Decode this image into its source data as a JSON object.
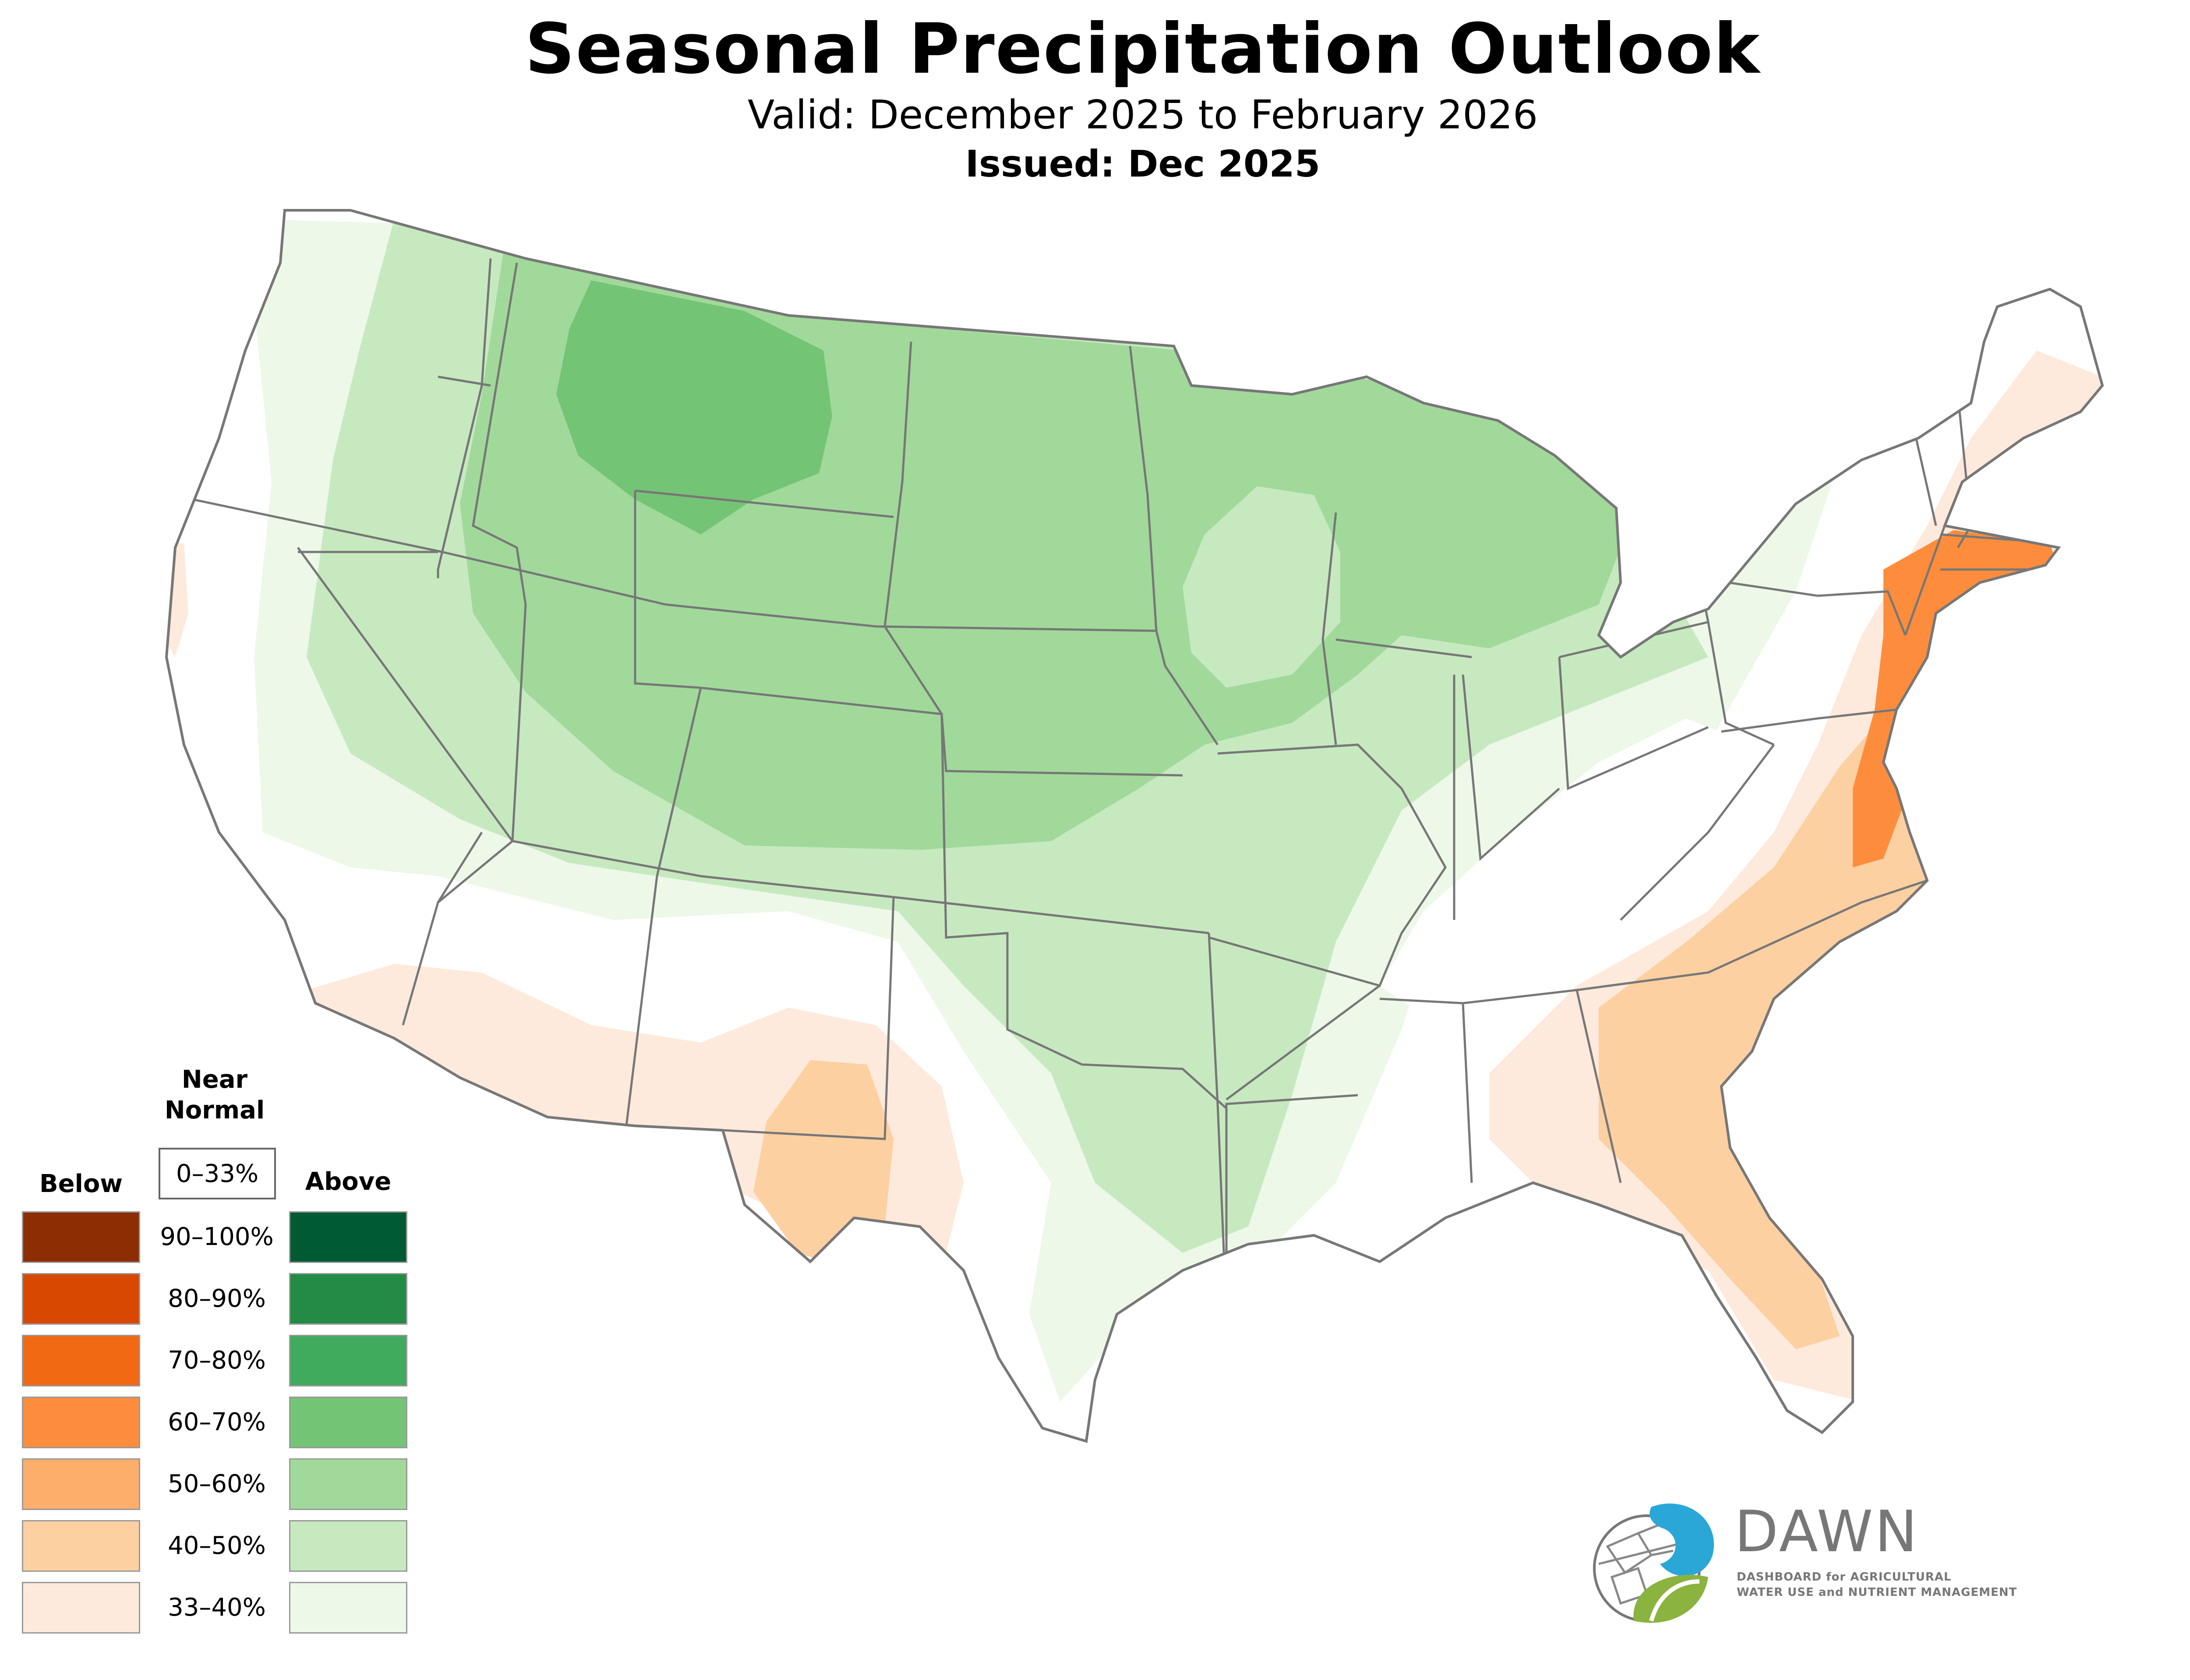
{
  "header": {
    "title": "Seasonal Precipitation Outlook",
    "valid": "Valid: December 2025 to February 2026",
    "issued": "Issued: Dec 2025"
  },
  "legend": {
    "near_normal_label": "Near\nNormal",
    "near_normal_range": "0–33%",
    "below_label": "Below",
    "above_label": "Above",
    "levels": [
      {
        "range": "90–100%",
        "below_color": "#8c2d04",
        "above_color": "#005a32"
      },
      {
        "range": "80–90%",
        "below_color": "#d94801",
        "above_color": "#238b45"
      },
      {
        "range": "70–80%",
        "below_color": "#f16913",
        "above_color": "#41ab5d"
      },
      {
        "range": "60–70%",
        "below_color": "#fd8d3c",
        "above_color": "#74c476"
      },
      {
        "range": "50–60%",
        "below_color": "#fdae6b",
        "above_color": "#a1d99b"
      },
      {
        "range": "40–50%",
        "below_color": "#fdd0a2",
        "above_color": "#c7e9c0"
      },
      {
        "range": "33–40%",
        "below_color": "#feeadc",
        "above_color": "#edf8e9"
      }
    ]
  },
  "logo": {
    "name": "DAWN",
    "line1": "DASHBOARD for AGRICULTURAL",
    "line2": "WATER USE and NUTRIENT MANAGEMENT"
  },
  "colors": {
    "state_border": "#777777",
    "above_33_40": "#edf8e9",
    "above_40_50": "#c7e9c0",
    "above_50_60": "#a1d99b",
    "above_60_70": "#74c476",
    "below_33_40": "#feeadc",
    "below_40_50": "#fdd0a2",
    "below_60_70": "#fd8d3c"
  }
}
